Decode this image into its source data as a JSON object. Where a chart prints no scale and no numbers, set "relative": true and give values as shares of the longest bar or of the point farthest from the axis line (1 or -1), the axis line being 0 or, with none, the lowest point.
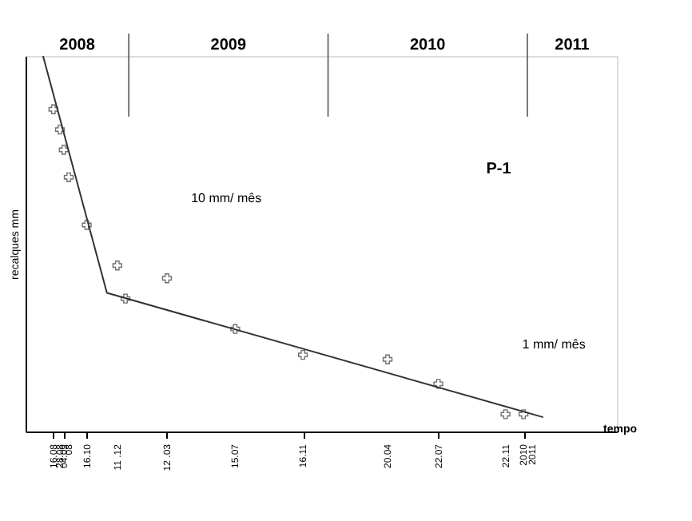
{
  "chart_data": {
    "type": "scatter",
    "relative": true,
    "xlabel": "tempo",
    "ylabel": "recalques   mm",
    "marker": "cross",
    "grid": false,
    "x": [
      "2008-08-16",
      "2008-08-28",
      "2008-09-04",
      "2008-09-13",
      "2008-10-16",
      "2008-12-11",
      "2008-12-26",
      "2009-03-12",
      "2009-07-15",
      "2009-11-16",
      "2010-04-20",
      "2010-07-22",
      "2010-11-22",
      "2010-12-25"
    ],
    "series": [
      {
        "color": "#333333",
        "values": [
          0.858,
          0.804,
          0.75,
          0.677,
          0.55,
          0.442,
          0.354,
          0.408,
          0.273,
          0.204,
          0.192,
          0.127,
          0.046,
          0.046
        ]
      },
      {
        "type": "line",
        "marker": "none",
        "color": "#333333",
        "x": [
          "2008-07-28",
          "2008-11-22",
          "2011-01-30"
        ],
        "values": [
          1.0,
          0.369,
          0.038
        ]
      }
    ],
    "xlim": [
      "2008-06-26",
      "2011-06-14"
    ],
    "xticks": [
      {
        "value": "2008-08-16",
        "label": "16.08"
      },
      {
        "value": "2008-08-28",
        "label": "28.08"
      },
      {
        "value": "2008-09-04",
        "label": "04.09"
      },
      {
        "value": "2008-09-13",
        "label": "08"
      },
      {
        "value": "2008-10-16",
        "label": "16.10"
      },
      {
        "value": "2008-12-11",
        "label": "11 .12"
      },
      {
        "value": "2009-03-12",
        "label": "12 .03"
      },
      {
        "value": "2009-07-15",
        "label": "15.07"
      },
      {
        "value": "2009-11-16",
        "label": "16.11"
      },
      {
        "value": "2010-04-20",
        "label": "20.04"
      },
      {
        "value": "2010-07-22",
        "label": "22.07"
      },
      {
        "value": "2010-11-22",
        "label": "22.11"
      },
      {
        "value": "2010-12-25",
        "label": "2010"
      },
      {
        "value": "2011-01-10",
        "label": "2011"
      }
    ],
    "ref_lines": [
      {
        "axis": "x",
        "value": "2009-01-01",
        "color": "#555555"
      },
      {
        "axis": "x",
        "value": "2010-01-01",
        "color": "#555555"
      },
      {
        "axis": "x",
        "value": "2011-01-01",
        "color": "#555555"
      }
    ],
    "annotations": [
      "2008",
      "2009",
      "2010",
      "2011",
      "10 mm/ mês",
      "1 mm/ mês",
      "P-1"
    ]
  }
}
